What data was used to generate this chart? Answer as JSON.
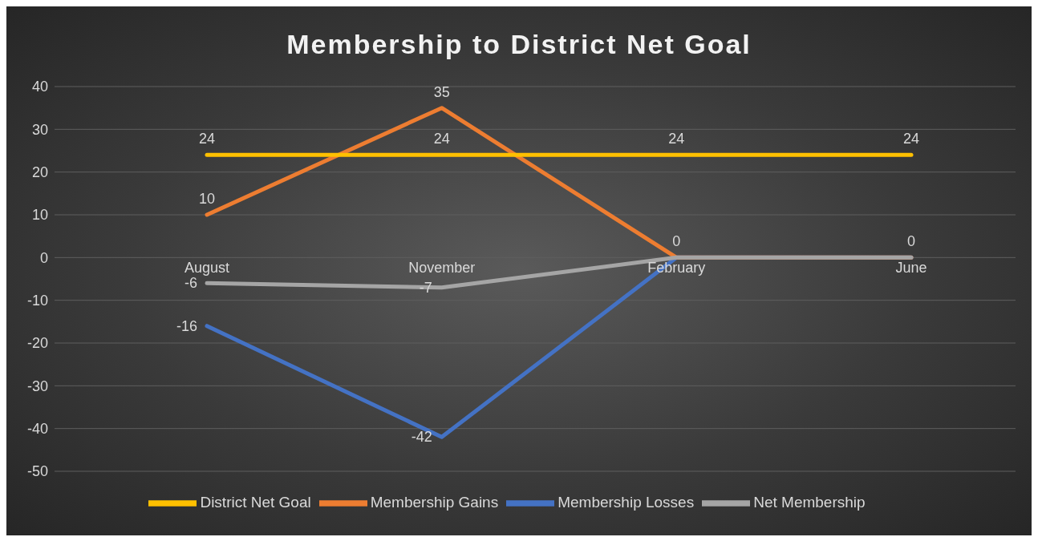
{
  "chart_data": {
    "type": "line",
    "title": "Membership to District Net Goal",
    "categories": [
      "August",
      "November",
      "February",
      "June"
    ],
    "series": [
      {
        "name": "Membership Losses",
        "color": "#4472c4",
        "values": [
          -16,
          -42,
          0,
          0
        ],
        "value_labels": [
          "-16",
          "-42",
          "0",
          "0"
        ]
      },
      {
        "name": "Membership Gains",
        "color": "#ed7d31",
        "values": [
          10,
          35,
          0,
          0
        ],
        "value_labels": [
          "10",
          "35",
          null,
          null
        ]
      },
      {
        "name": "Net Membership",
        "color": "#a5a5a5",
        "values": [
          -6,
          -7,
          0,
          0
        ],
        "value_labels": [
          "-6",
          "-7",
          null,
          null
        ]
      },
      {
        "name": "District Net Goal",
        "color": "#ffc000",
        "values": [
          24,
          24,
          24,
          24
        ],
        "value_labels": [
          "24",
          "24",
          "24",
          "24"
        ]
      }
    ],
    "ylim": [
      -50,
      40
    ],
    "yticks": [
      -50,
      -40,
      -30,
      -20,
      -10,
      0,
      10,
      20,
      30,
      40
    ],
    "grid": "y",
    "legend": "bottom",
    "marker": "none",
    "line_style": "solid"
  }
}
